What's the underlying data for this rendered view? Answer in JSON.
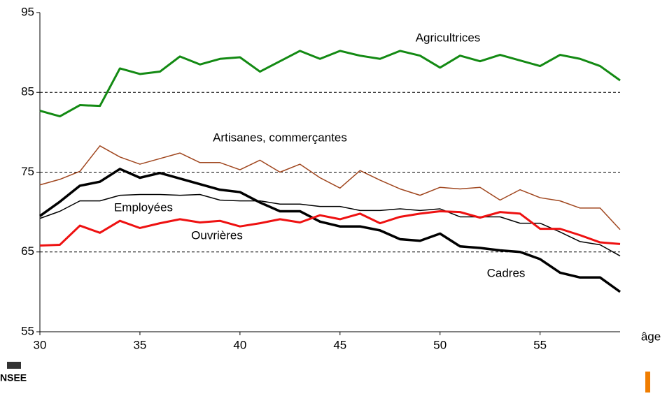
{
  "chart_data": {
    "type": "line",
    "x_label": "âge",
    "logo": "NSEE",
    "x": [
      30,
      31,
      32,
      33,
      34,
      35,
      36,
      37,
      38,
      39,
      40,
      41,
      42,
      43,
      44,
      45,
      46,
      47,
      48,
      49,
      50,
      51,
      52,
      53,
      54,
      55,
      56,
      57,
      58,
      59
    ],
    "xlim": [
      30,
      59
    ],
    "xticks": [
      30,
      35,
      40,
      45,
      50,
      55
    ],
    "ylim": [
      55,
      95
    ],
    "yticks": [
      55,
      65,
      75,
      85,
      95
    ],
    "grid": true,
    "series": [
      {
        "name": "Agricultrices",
        "color": "#138a13",
        "values": [
          82.7,
          82.0,
          83.4,
          83.3,
          88.0,
          87.3,
          87.6,
          89.5,
          88.5,
          89.2,
          89.4,
          87.6,
          88.9,
          90.2,
          89.2,
          90.2,
          89.6,
          89.2,
          90.2,
          89.6,
          88.1,
          89.6,
          88.9,
          89.7,
          89.0,
          88.3,
          89.7,
          89.2,
          88.3,
          86.5
        ]
      },
      {
        "name": "Artisanes, commerçantes",
        "color": "#a0461e",
        "values": [
          73.4,
          74.1,
          75.1,
          78.3,
          76.9,
          76.0,
          76.7,
          77.4,
          76.2,
          76.2,
          75.3,
          76.5,
          75.0,
          76.0,
          74.3,
          73.0,
          75.2,
          74.0,
          72.9,
          72.1,
          73.1,
          72.9,
          73.1,
          71.5,
          72.8,
          71.8,
          71.4,
          70.5,
          70.5,
          67.8
        ]
      },
      {
        "name": "Employées",
        "color": "#000000",
        "values": [
          69.2,
          70.1,
          71.4,
          71.4,
          72.1,
          72.2,
          72.2,
          72.1,
          72.2,
          71.5,
          71.4,
          71.4,
          71.0,
          71.0,
          70.7,
          70.7,
          70.2,
          70.2,
          70.4,
          70.2,
          70.4,
          69.4,
          69.4,
          69.4,
          68.6,
          68.6,
          67.5,
          66.3,
          65.9,
          64.5
        ]
      },
      {
        "name": "Cadres",
        "color": "#000000",
        "values": [
          69.5,
          71.3,
          73.3,
          73.8,
          75.4,
          74.3,
          74.9,
          74.2,
          73.5,
          72.8,
          72.5,
          71.2,
          70.1,
          70.1,
          68.8,
          68.2,
          68.2,
          67.7,
          66.6,
          66.4,
          67.3,
          65.7,
          65.5,
          65.2,
          65.0,
          64.1,
          62.4,
          61.8,
          61.8,
          60.0
        ]
      },
      {
        "name": "Ouvrières",
        "color": "#ee1111",
        "values": [
          65.8,
          65.9,
          68.3,
          67.4,
          68.9,
          68.0,
          68.6,
          69.1,
          68.7,
          68.9,
          68.2,
          68.6,
          69.1,
          68.7,
          69.6,
          69.1,
          69.8,
          68.6,
          69.4,
          69.8,
          70.1,
          70.0,
          69.3,
          70.0,
          69.8,
          67.9,
          67.9,
          67.1,
          66.2,
          66.0
        ]
      }
    ]
  }
}
